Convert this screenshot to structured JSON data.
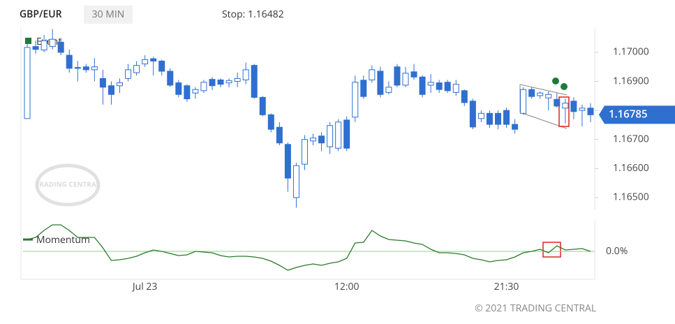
{
  "header": {
    "symbol": "GBP/EUR",
    "interval": "30 MIN",
    "stop": "Stop: 1.16482"
  },
  "watermark": "TRADING CENTRAL",
  "footer": "© 2021 TRADING CENTRAL",
  "chart_data": [
    {
      "type": "candlestick",
      "legend": "Event",
      "last_price": 1.16785,
      "bull_color": "#ffffff",
      "bear_color": "#2f6fcf",
      "wick_color": "#2f6fcf",
      "categories": [
        null,
        null,
        null,
        null,
        null,
        null,
        null,
        null,
        null,
        null,
        null,
        null,
        null,
        null,
        "Jul 23",
        null,
        null,
        null,
        null,
        null,
        null,
        null,
        null,
        null,
        null,
        null,
        null,
        null,
        null,
        null,
        null,
        null,
        null,
        null,
        null,
        null,
        null,
        null,
        "12:00",
        null,
        null,
        null,
        null,
        null,
        null,
        null,
        null,
        null,
        null,
        null,
        null,
        null,
        null,
        null,
        null,
        null,
        null,
        "21:30",
        null,
        null,
        null,
        null,
        null,
        null,
        null,
        null,
        null,
        null
      ],
      "open": [
        1.16772,
        1.1702,
        1.17008,
        1.1702,
        1.17035,
        1.1699,
        1.16948,
        1.1695,
        1.1694,
        1.1691,
        1.16885,
        1.16885,
        1.1691,
        1.1693,
        1.1696,
        1.16978,
        1.1697,
        1.16935,
        1.16895,
        1.16885,
        1.1686,
        1.16868,
        1.16907,
        1.16905,
        1.16895,
        1.169,
        1.16905,
        1.16955,
        1.16845,
        1.16785,
        1.16742,
        1.16683,
        1.165,
        1.16615,
        1.16695,
        1.16712,
        1.16675,
        1.1667,
        1.16767,
        1.16777,
        1.16904,
        1.16905,
        1.16935,
        1.16862,
        1.1695,
        1.16887,
        1.16933,
        1.16915,
        1.16887,
        1.16895,
        1.16897,
        1.16862,
        1.16868,
        1.16832,
        1.16772,
        1.1679,
        1.1679,
        1.168,
        1.16752,
        1.1679,
        1.16872,
        1.16851,
        1.16843,
        1.16838,
        1.16808,
        1.16832,
        1.168,
        1.16808
      ],
      "high": [
        1.1703,
        1.1704,
        1.1706,
        1.1708,
        1.1705,
        1.1701,
        1.1697,
        1.1696,
        1.1698,
        1.1694,
        1.169,
        1.1691,
        1.1696,
        1.1697,
        1.1699,
        1.16985,
        1.16975,
        1.16945,
        1.16905,
        1.1689,
        1.1688,
        1.16905,
        1.16915,
        1.1691,
        1.1691,
        1.1693,
        1.16965,
        1.1696,
        1.1685,
        1.1679,
        1.1676,
        1.1669,
        1.1662,
        1.16715,
        1.1672,
        1.16725,
        1.1676,
        1.1677,
        1.1678,
        1.1692,
        1.1692,
        1.16955,
        1.1695,
        1.169,
        1.1696,
        1.1695,
        1.1696,
        1.1692,
        1.16925,
        1.16905,
        1.16905,
        1.16905,
        1.16872,
        1.1684,
        1.168,
        1.168,
        1.168,
        1.1681,
        1.1677,
        1.1688,
        1.1688,
        1.16865,
        1.16865,
        1.1686,
        1.1684,
        1.16845,
        1.1682,
        1.16825
      ],
      "low": [
        1.16772,
        1.16995,
        1.17,
        1.1701,
        1.1699,
        1.1693,
        1.169,
        1.1693,
        1.169,
        1.1682,
        1.1682,
        1.1686,
        1.169,
        1.1692,
        1.1695,
        1.1692,
        1.1692,
        1.1688,
        1.16845,
        1.1683,
        1.1684,
        1.1686,
        1.1687,
        1.1688,
        1.1688,
        1.1688,
        1.1689,
        1.1684,
        1.1678,
        1.16725,
        1.1668,
        1.1652,
        1.16465,
        1.16595,
        1.1668,
        1.1666,
        1.1665,
        1.1666,
        1.1666,
        1.1676,
        1.1684,
        1.16895,
        1.16845,
        1.16855,
        1.1688,
        1.1688,
        1.16905,
        1.16845,
        1.1686,
        1.1686,
        1.1686,
        1.1685,
        1.16815,
        1.16735,
        1.1676,
        1.1674,
        1.16735,
        1.1674,
        1.1672,
        1.16785,
        1.1684,
        1.1684,
        1.168,
        1.1681,
        1.16755,
        1.1677,
        1.16745,
        1.1676
      ],
      "close": [
        1.17017,
        1.1701,
        1.1704,
        1.17045,
        1.17,
        1.16945,
        1.16945,
        1.1694,
        1.1695,
        1.1688,
        1.16855,
        1.16895,
        1.1694,
        1.16955,
        1.16975,
        1.1697,
        1.16935,
        1.16887,
        1.16855,
        1.1684,
        1.16872,
        1.16897,
        1.16885,
        1.1689,
        1.16903,
        1.1691,
        1.1694,
        1.16845,
        1.16785,
        1.16735,
        1.16688,
        1.16567,
        1.1661,
        1.167,
        1.16705,
        1.16688,
        1.16748,
        1.1676,
        1.1667,
        1.16897,
        1.16848,
        1.1694,
        1.16855,
        1.1688,
        1.16887,
        1.16928,
        1.16915,
        1.16855,
        1.16897,
        1.16872,
        1.16868,
        1.1689,
        1.16827,
        1.16743,
        1.1679,
        1.16752,
        1.16752,
        1.16752,
        1.16735,
        1.16872,
        1.16848,
        1.1686,
        1.16855,
        1.16815,
        1.16825,
        1.16796,
        1.16808,
        1.16785
      ],
      "ylim": [
        1.16459,
        1.17084
      ],
      "yticks": [
        {
          "value": 1.165,
          "label": "1.16500"
        },
        {
          "value": 1.166,
          "label": "1.16600"
        },
        {
          "value": 1.167,
          "label": "1.16700"
        },
        {
          "value": 1.168,
          "label": "1.16800"
        },
        {
          "value": 1.169,
          "label": "1.16900"
        },
        {
          "value": 1.17,
          "label": "1.17000"
        }
      ]
    },
    {
      "type": "line",
      "series": [
        {
          "name": "Momentum",
          "color": "#2a7a2a",
          "values": [
            0.17,
            0.2,
            0.3,
            0.38,
            0.38,
            0.3,
            0.2,
            0.2,
            0.2,
            0.05,
            -0.13,
            -0.12,
            -0.1,
            -0.07,
            -0.02,
            0.02,
            0,
            -0.03,
            -0.06,
            -0.05,
            0,
            -0.01,
            -0.02,
            -0.06,
            -0.08,
            -0.07,
            -0.07,
            -0.08,
            -0.1,
            -0.14,
            -0.2,
            -0.27,
            -0.23,
            -0.2,
            -0.18,
            -0.2,
            -0.17,
            -0.15,
            -0.1,
            0.12,
            0.13,
            0.3,
            0.22,
            0.17,
            0.16,
            0.15,
            0.12,
            0.1,
            0.03,
            -0.02,
            -0.02,
            -0.03,
            -0.05,
            -0.1,
            -0.12,
            -0.15,
            -0.13,
            -0.12,
            -0.08,
            -0.02,
            0,
            0.03,
            -0.02,
            0.08,
            0.02,
            0.03,
            0.04,
            0
          ]
        }
      ],
      "ylim": [
        -0.4,
        0.45
      ],
      "yticks": [
        {
          "value": 0,
          "label": "0.0%"
        }
      ]
    }
  ]
}
